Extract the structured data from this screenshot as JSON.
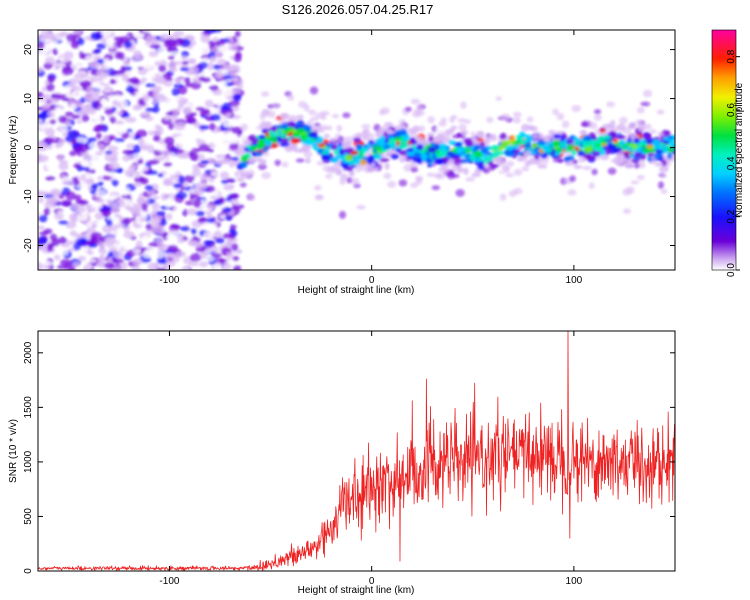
{
  "page": {
    "title": "S126.2026.057.04.25.R17"
  },
  "colors": {
    "snr_line": "#ee2222",
    "background": "#ffffff",
    "axis": "#000000"
  },
  "chart_data": [
    {
      "type": "heatmap",
      "title": "S126.2026.057.04.25.R17",
      "xlabel": "Height of straight line (km)",
      "ylabel": "Frequency (Hz)",
      "xlim": [
        -165,
        150
      ],
      "ylim": [
        -25,
        24
      ],
      "x_ticks": [
        -100,
        0,
        100
      ],
      "y_ticks": [
        -20,
        -10,
        0,
        10,
        20
      ],
      "colorbar": {
        "label": "Normalized spectral amplitude",
        "range": [
          0,
          0.9
        ],
        "ticks": [
          0.0,
          0.2,
          0.4,
          0.6,
          0.8
        ]
      },
      "noise_region_km": [
        -165,
        -65
      ],
      "signal_region_km": [
        -65,
        150
      ],
      "signal_track": {
        "x_km": [
          -65,
          -60,
          -55,
          -50,
          -45,
          -40,
          -35,
          -30,
          -25,
          -20,
          -15,
          -10,
          -5,
          0,
          5,
          10,
          15,
          20,
          25,
          30,
          35,
          40,
          45,
          50,
          55,
          60,
          65,
          70,
          75,
          80,
          85,
          90,
          95,
          100,
          105,
          110,
          115,
          120,
          125,
          130,
          135,
          140,
          145,
          150
        ],
        "freq_hz": [
          -3,
          -1,
          1,
          2,
          3,
          3,
          3,
          2,
          0,
          -1,
          -2,
          -2,
          -1,
          -1,
          0,
          1,
          1,
          0,
          -1,
          -1,
          -1,
          0,
          -1,
          -1,
          -2,
          -1,
          0,
          1,
          1,
          0,
          0,
          0,
          0,
          0,
          0,
          0,
          1,
          1,
          0,
          0,
          0,
          0,
          0,
          1
        ]
      }
    },
    {
      "type": "line",
      "xlabel": "Height of straight line (km)",
      "ylabel": "SNR (10 * v/v)",
      "xlim": [
        -165,
        150
      ],
      "ylim": [
        0,
        2200
      ],
      "x_ticks": [
        -100,
        0,
        100
      ],
      "y_ticks": [
        0,
        500,
        1000,
        1500,
        2000
      ],
      "envelope": {
        "x_km": [
          -165,
          -140,
          -120,
          -100,
          -80,
          -65,
          -55,
          -45,
          -35,
          -28,
          -20,
          -15,
          -10,
          -5,
          0,
          5,
          10,
          15,
          20,
          25,
          30,
          40,
          50,
          60,
          70,
          80,
          90,
          100,
          110,
          120,
          130,
          140,
          150
        ],
        "snr_mean": [
          25,
          25,
          25,
          25,
          25,
          25,
          40,
          100,
          150,
          220,
          400,
          600,
          650,
          680,
          750,
          800,
          820,
          850,
          900,
          950,
          1000,
          1000,
          1000,
          1050,
          1050,
          1080,
          1050,
          1050,
          1000,
          1000,
          1000,
          980,
          1000
        ],
        "snr_spread": [
          12,
          12,
          12,
          12,
          12,
          14,
          30,
          60,
          70,
          120,
          150,
          180,
          200,
          200,
          200,
          220,
          250,
          250,
          280,
          300,
          280,
          250,
          250,
          250,
          250,
          250,
          250,
          250,
          250,
          250,
          250,
          250,
          250
        ]
      },
      "spikes": [
        {
          "x_km": 97,
          "snr": 2200
        },
        {
          "x_km": 27,
          "snr": 1760
        },
        {
          "x_km": 20,
          "snr": 1560
        },
        {
          "x_km": 94,
          "snr": 1480
        },
        {
          "x_km": 78,
          "snr": 1450
        },
        {
          "x_km": 98,
          "snr": 300
        },
        {
          "x_km": 14,
          "snr": 90
        }
      ]
    }
  ]
}
